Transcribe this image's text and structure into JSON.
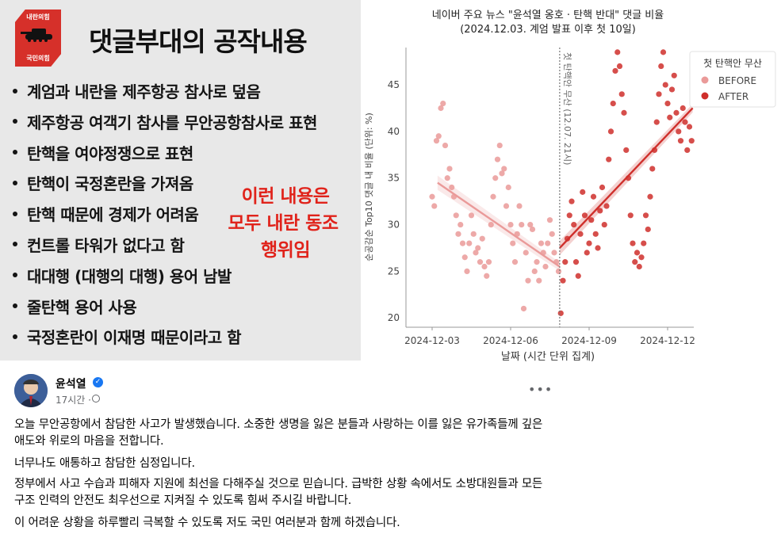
{
  "left_card": {
    "badge_top": "내란의힘",
    "badge_bottom": "국민의힘",
    "title": "댓글부대의 공작내용",
    "bullets": [
      "계엄과 내란을 제주항공 참사로 덮음",
      "제주항공 여객기 참사를 무안공항참사로 표현",
      "탄핵을 여야정쟁으로 표현",
      "탄핵이 국정혼란을 가져옴",
      "탄핵 때문에 경제가 어려움",
      "컨트롤 타워가 없다고 함",
      "대대행 (대행의 대행) 용어 남발",
      "줄탄핵 용어 사용",
      "국정혼란이 이재명 때문이라고 함"
    ],
    "note_lines": [
      "이런 내용은",
      "모두 내란 동조",
      "행위임"
    ],
    "colors": {
      "note": "#e0231b",
      "badge": "#d6302a"
    }
  },
  "chart_data": {
    "type": "scatter",
    "title": "네이버 주요 뉴스 \"윤석열 옹호 · 탄핵 반대\" 댓글 비율",
    "subtitle": "(2024.12.03. 계엄 발표 이후 첫 10일)",
    "xlabel": "날짜 (시간 단위 집계)",
    "ylabel": "순공감순 Top10 댓글 내 비율 (단위: %)",
    "x_ticks": [
      "2024-12-03",
      "2024-12-06",
      "2024-12-09",
      "2024-12-12"
    ],
    "y_ticks": [
      20,
      25,
      30,
      35,
      40,
      45
    ],
    "ylim": [
      19,
      49
    ],
    "xlim": [
      "2024-12-02 00:00",
      "2024-12-13 00:00"
    ],
    "vline": {
      "x": "2024-12-07 21:00",
      "label": "첫 탄핵안 무산 (12.07. 21시)"
    },
    "legend": {
      "title": "첫 탄핵안 무산",
      "entries": [
        "BEFORE",
        "AFTER"
      ],
      "position": "top-right"
    },
    "colors": {
      "before": "#ea9a99",
      "after": "#cf2f2b"
    },
    "series": [
      {
        "name": "BEFORE",
        "trend": {
          "start": [
            "2024-12-03 05:00",
            34.5
          ],
          "end": [
            "2024-12-07 21:00",
            25.5
          ]
        },
        "points": [
          [
            "2024-12-03 00:00",
            33
          ],
          [
            "2024-12-03 02:00",
            32
          ],
          [
            "2024-12-03 04:00",
            39
          ],
          [
            "2024-12-03 06:00",
            39.5
          ],
          [
            "2024-12-03 08:00",
            42.5
          ],
          [
            "2024-12-03 10:00",
            43
          ],
          [
            "2024-12-03 12:00",
            38.5
          ],
          [
            "2024-12-03 14:00",
            35
          ],
          [
            "2024-12-03 16:00",
            36
          ],
          [
            "2024-12-03 18:00",
            34
          ],
          [
            "2024-12-03 20:00",
            33
          ],
          [
            "2024-12-03 22:00",
            31
          ],
          [
            "2024-12-04 00:00",
            29
          ],
          [
            "2024-12-04 02:00",
            30
          ],
          [
            "2024-12-04 04:00",
            28
          ],
          [
            "2024-12-04 06:00",
            26.5
          ],
          [
            "2024-12-04 08:00",
            25
          ],
          [
            "2024-12-04 10:00",
            28
          ],
          [
            "2024-12-04 12:00",
            31
          ],
          [
            "2024-12-04 14:00",
            29
          ],
          [
            "2024-12-04 16:00",
            27
          ],
          [
            "2024-12-04 18:00",
            27.5
          ],
          [
            "2024-12-04 20:00",
            26
          ],
          [
            "2024-12-04 22:00",
            28.5
          ],
          [
            "2024-12-05 00:00",
            25.5
          ],
          [
            "2024-12-05 02:00",
            24.5
          ],
          [
            "2024-12-05 04:00",
            26
          ],
          [
            "2024-12-05 06:00",
            30
          ],
          [
            "2024-12-05 08:00",
            33
          ],
          [
            "2024-12-05 10:00",
            35
          ],
          [
            "2024-12-05 12:00",
            37
          ],
          [
            "2024-12-05 14:00",
            38.5
          ],
          [
            "2024-12-05 16:00",
            35.5
          ],
          [
            "2024-12-05 18:00",
            36
          ],
          [
            "2024-12-05 20:00",
            32
          ],
          [
            "2024-12-05 22:00",
            34
          ],
          [
            "2024-12-06 00:00",
            30
          ],
          [
            "2024-12-06 02:00",
            28
          ],
          [
            "2024-12-06 04:00",
            26
          ],
          [
            "2024-12-06 06:00",
            29
          ],
          [
            "2024-12-06 08:00",
            32
          ],
          [
            "2024-12-06 10:00",
            30
          ],
          [
            "2024-12-06 12:00",
            21
          ],
          [
            "2024-12-06 14:00",
            27
          ],
          [
            "2024-12-06 16:00",
            24
          ],
          [
            "2024-12-06 18:00",
            30
          ],
          [
            "2024-12-06 20:00",
            29.5
          ],
          [
            "2024-12-06 22:00",
            25
          ],
          [
            "2024-12-07 00:00",
            26
          ],
          [
            "2024-12-07 02:00",
            24
          ],
          [
            "2024-12-07 04:00",
            28
          ],
          [
            "2024-12-07 06:00",
            27
          ],
          [
            "2024-12-07 08:00",
            25.5
          ],
          [
            "2024-12-07 10:00",
            28
          ],
          [
            "2024-12-07 12:00",
            30.5
          ],
          [
            "2024-12-07 14:00",
            29
          ],
          [
            "2024-12-07 16:00",
            27
          ],
          [
            "2024-12-07 18:00",
            26
          ],
          [
            "2024-12-07 20:00",
            25
          ]
        ]
      },
      {
        "name": "AFTER",
        "trend": {
          "start": [
            "2024-12-07 21:00",
            27.5
          ],
          "end": [
            "2024-12-12 23:00",
            42.5
          ]
        },
        "points": [
          [
            "2024-12-07 22:00",
            20.5
          ],
          [
            "2024-12-08 00:00",
            24
          ],
          [
            "2024-12-08 02:00",
            26
          ],
          [
            "2024-12-08 04:00",
            28.5
          ],
          [
            "2024-12-08 06:00",
            31
          ],
          [
            "2024-12-08 08:00",
            32.5
          ],
          [
            "2024-12-08 10:00",
            30
          ],
          [
            "2024-12-08 12:00",
            26
          ],
          [
            "2024-12-08 14:00",
            24.5
          ],
          [
            "2024-12-08 16:00",
            29
          ],
          [
            "2024-12-08 18:00",
            33.5
          ],
          [
            "2024-12-08 20:00",
            31
          ],
          [
            "2024-12-08 22:00",
            27
          ],
          [
            "2024-12-09 00:00",
            28
          ],
          [
            "2024-12-09 02:00",
            30.5
          ],
          [
            "2024-12-09 04:00",
            33
          ],
          [
            "2024-12-09 06:00",
            29
          ],
          [
            "2024-12-09 08:00",
            27.5
          ],
          [
            "2024-12-09 10:00",
            31.5
          ],
          [
            "2024-12-09 12:00",
            34
          ],
          [
            "2024-12-09 14:00",
            30
          ],
          [
            "2024-12-09 16:00",
            32
          ],
          [
            "2024-12-09 18:00",
            37
          ],
          [
            "2024-12-09 20:00",
            40
          ],
          [
            "2024-12-09 22:00",
            43
          ],
          [
            "2024-12-10 00:00",
            46.5
          ],
          [
            "2024-12-10 02:00",
            48.5
          ],
          [
            "2024-12-10 04:00",
            47
          ],
          [
            "2024-12-10 06:00",
            44
          ],
          [
            "2024-12-10 08:00",
            42
          ],
          [
            "2024-12-10 10:00",
            38
          ],
          [
            "2024-12-10 12:00",
            35
          ],
          [
            "2024-12-10 14:00",
            31
          ],
          [
            "2024-12-10 16:00",
            28
          ],
          [
            "2024-12-10 18:00",
            26
          ],
          [
            "2024-12-10 20:00",
            27
          ],
          [
            "2024-12-10 22:00",
            25.5
          ],
          [
            "2024-12-11 00:00",
            26.5
          ],
          [
            "2024-12-11 02:00",
            28
          ],
          [
            "2024-12-11 04:00",
            31
          ],
          [
            "2024-12-11 06:00",
            29.5
          ],
          [
            "2024-12-11 08:00",
            33
          ],
          [
            "2024-12-11 10:00",
            36
          ],
          [
            "2024-12-11 12:00",
            38
          ],
          [
            "2024-12-11 14:00",
            41
          ],
          [
            "2024-12-11 16:00",
            44
          ],
          [
            "2024-12-11 18:00",
            47
          ],
          [
            "2024-12-11 20:00",
            48.5
          ],
          [
            "2024-12-11 22:00",
            45
          ],
          [
            "2024-12-12 00:00",
            43
          ],
          [
            "2024-12-12 02:00",
            41.5
          ],
          [
            "2024-12-12 04:00",
            44.5
          ],
          [
            "2024-12-12 06:00",
            46
          ],
          [
            "2024-12-12 08:00",
            42
          ],
          [
            "2024-12-12 10:00",
            40
          ],
          [
            "2024-12-12 12:00",
            39
          ],
          [
            "2024-12-12 14:00",
            42.5
          ],
          [
            "2024-12-12 16:00",
            41
          ],
          [
            "2024-12-12 18:00",
            38
          ],
          [
            "2024-12-12 20:00",
            40.5
          ],
          [
            "2024-12-12 22:00",
            39
          ]
        ]
      }
    ]
  },
  "post": {
    "author": "윤석열",
    "verified_icon": "verified-badge-icon",
    "time": "17시간 ·",
    "more_icon": "more-options-icon",
    "paragraphs": [
      "오늘 무안공항에서 참담한 사고가 발생했습니다. 소중한 생명을 잃은 분들과 사랑하는 이를 잃은 유가족들께 깊은 애도와 위로의 마음을 전합니다.",
      "너무나도 애통하고 참담한 심정입니다.",
      "정부에서 사고 수습과 피해자 지원에 최선을 다해주실 것으로 믿습니다. 급박한 상황 속에서도 소방대원들과 모든 구조 인력의 안전도 최우선으로 지켜질 수 있도록 힘써 주시길 바랍니다.",
      "이 어려운 상황을 하루빨리 극복할 수 있도록 저도 국민 여러분과 함께 하겠습니다."
    ]
  }
}
